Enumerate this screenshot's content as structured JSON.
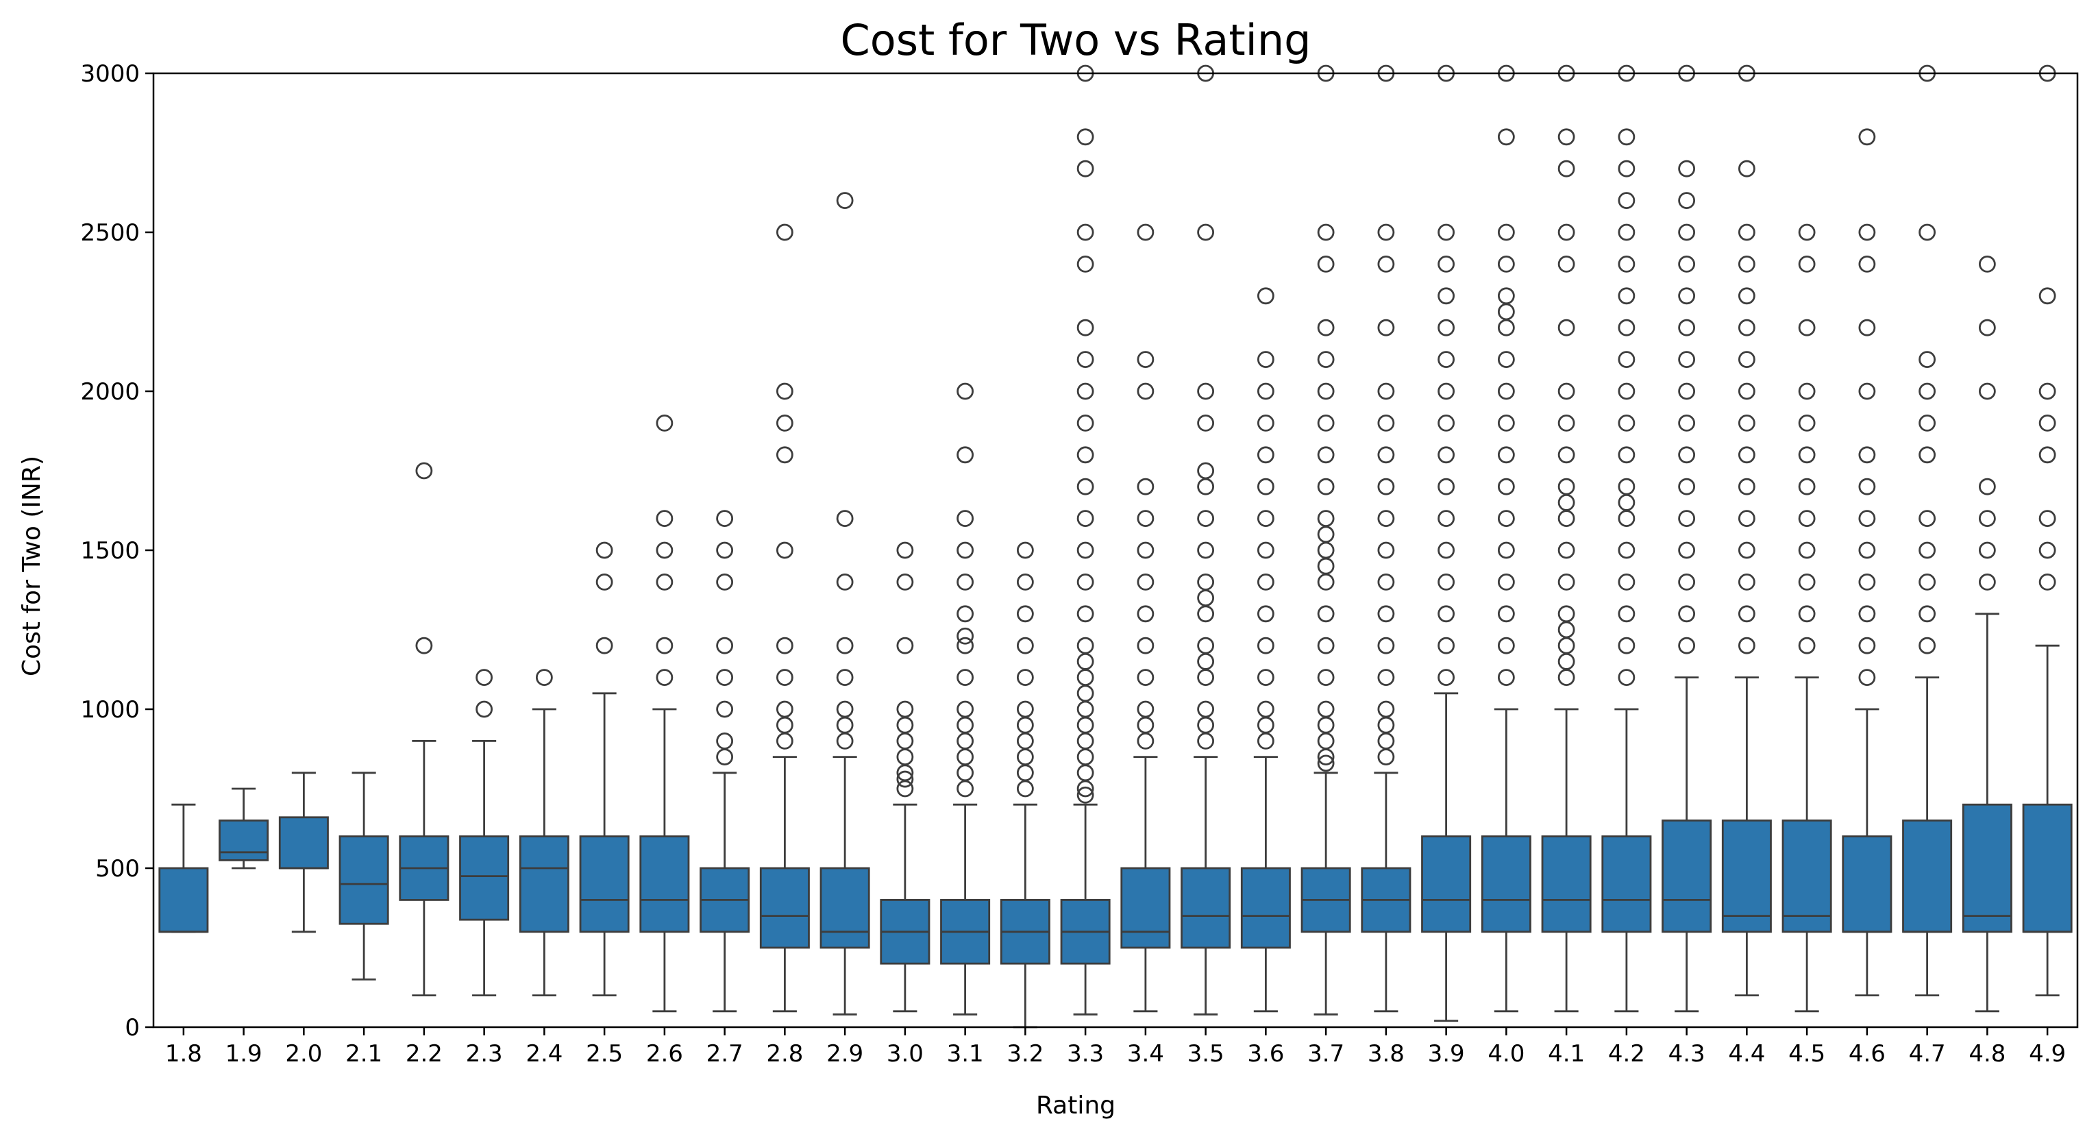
{
  "chart_data": {
    "type": "box",
    "title": "Cost for Two vs Rating",
    "xlabel": "Rating",
    "ylabel": "Cost for Two (INR)",
    "ylim": [
      0,
      3000
    ],
    "yticks": [
      0,
      500,
      1000,
      1500,
      2000,
      2500,
      3000
    ],
    "grid": false,
    "legend": "none",
    "colors": {
      "box": "#2c76ad",
      "line": "#3d3d3d",
      "outlier": "#3d3d3d"
    },
    "boxes": [
      {
        "x": "1.8",
        "whislo": 300,
        "q1": 300,
        "med": 300,
        "q3": 500,
        "whishi": 700,
        "fliers": []
      },
      {
        "x": "1.9",
        "whislo": 500,
        "q1": 525,
        "med": 550,
        "q3": 650,
        "whishi": 750,
        "fliers": []
      },
      {
        "x": "2.0",
        "whislo": 300,
        "q1": 500,
        "med": 500,
        "q3": 660,
        "whishi": 800,
        "fliers": []
      },
      {
        "x": "2.1",
        "whislo": 150,
        "q1": 325,
        "med": 450,
        "q3": 600,
        "whishi": 800,
        "fliers": []
      },
      {
        "x": "2.2",
        "whislo": 100,
        "q1": 400,
        "med": 500,
        "q3": 600,
        "whishi": 900,
        "fliers": [
          1200,
          1750
        ]
      },
      {
        "x": "2.3",
        "whislo": 100,
        "q1": 338,
        "med": 475,
        "q3": 600,
        "whishi": 900,
        "fliers": [
          1000,
          1100
        ]
      },
      {
        "x": "2.4",
        "whislo": 100,
        "q1": 300,
        "med": 500,
        "q3": 600,
        "whishi": 1000,
        "fliers": [
          1100
        ]
      },
      {
        "x": "2.5",
        "whislo": 100,
        "q1": 300,
        "med": 400,
        "q3": 600,
        "whishi": 1050,
        "fliers": [
          1200,
          1400,
          1500
        ]
      },
      {
        "x": "2.6",
        "whislo": 50,
        "q1": 300,
        "med": 400,
        "q3": 600,
        "whishi": 1000,
        "fliers": [
          1100,
          1200,
          1400,
          1500,
          1600,
          1900
        ]
      },
      {
        "x": "2.7",
        "whislo": 50,
        "q1": 300,
        "med": 400,
        "q3": 500,
        "whishi": 800,
        "fliers": [
          850,
          900,
          1000,
          1100,
          1200,
          1400,
          1500,
          1600
        ]
      },
      {
        "x": "2.8",
        "whislo": 50,
        "q1": 250,
        "med": 350,
        "q3": 500,
        "whishi": 850,
        "fliers": [
          900,
          950,
          1000,
          1100,
          1200,
          1500,
          1800,
          1900,
          2000,
          2500
        ]
      },
      {
        "x": "2.9",
        "whislo": 40,
        "q1": 250,
        "med": 300,
        "q3": 500,
        "whishi": 850,
        "fliers": [
          900,
          950,
          1000,
          1100,
          1200,
          1400,
          1600,
          2600
        ]
      },
      {
        "x": "3.0",
        "whislo": 50,
        "q1": 200,
        "med": 300,
        "q3": 400,
        "whishi": 700,
        "fliers": [
          750,
          780,
          800,
          850,
          900,
          950,
          1000,
          1200,
          1400,
          1500
        ]
      },
      {
        "x": "3.1",
        "whislo": 40,
        "q1": 200,
        "med": 300,
        "q3": 400,
        "whishi": 700,
        "fliers": [
          750,
          800,
          850,
          900,
          950,
          1000,
          1100,
          1200,
          1230,
          1300,
          1400,
          1500,
          1600,
          1800,
          2000
        ]
      },
      {
        "x": "3.2",
        "whislo": 0,
        "q1": 200,
        "med": 300,
        "q3": 400,
        "whishi": 700,
        "fliers": [
          750,
          800,
          850,
          900,
          950,
          1000,
          1100,
          1200,
          1300,
          1400,
          1500
        ]
      },
      {
        "x": "3.3",
        "whislo": 40,
        "q1": 200,
        "med": 300,
        "q3": 400,
        "whishi": 700,
        "fliers": [
          730,
          750,
          800,
          850,
          900,
          950,
          1000,
          1050,
          1100,
          1150,
          1200,
          1300,
          1400,
          1500,
          1600,
          1700,
          1800,
          1900,
          2000,
          2100,
          2200,
          2400,
          2500,
          2700,
          2800,
          3000
        ]
      },
      {
        "x": "3.4",
        "whislo": 50,
        "q1": 250,
        "med": 300,
        "q3": 500,
        "whishi": 850,
        "fliers": [
          900,
          950,
          1000,
          1100,
          1200,
          1300,
          1400,
          1500,
          1600,
          1700,
          2000,
          2100,
          2500
        ]
      },
      {
        "x": "3.5",
        "whislo": 40,
        "q1": 250,
        "med": 350,
        "q3": 500,
        "whishi": 850,
        "fliers": [
          900,
          950,
          1000,
          1100,
          1150,
          1200,
          1300,
          1350,
          1400,
          1500,
          1600,
          1700,
          1750,
          1900,
          2000,
          2500,
          3000
        ]
      },
      {
        "x": "3.6",
        "whislo": 50,
        "q1": 250,
        "med": 350,
        "q3": 500,
        "whishi": 850,
        "fliers": [
          900,
          950,
          1000,
          1100,
          1200,
          1300,
          1400,
          1500,
          1600,
          1700,
          1800,
          1900,
          2000,
          2100,
          2300
        ]
      },
      {
        "x": "3.7",
        "whislo": 40,
        "q1": 300,
        "med": 400,
        "q3": 500,
        "whishi": 800,
        "fliers": [
          830,
          850,
          900,
          950,
          1000,
          1100,
          1200,
          1300,
          1400,
          1450,
          1500,
          1550,
          1600,
          1700,
          1800,
          1900,
          2000,
          2100,
          2200,
          2400,
          2500,
          3000
        ]
      },
      {
        "x": "3.8",
        "whislo": 50,
        "q1": 300,
        "med": 400,
        "q3": 500,
        "whishi": 800,
        "fliers": [
          850,
          900,
          950,
          1000,
          1100,
          1200,
          1300,
          1400,
          1500,
          1600,
          1700,
          1800,
          1900,
          2000,
          2200,
          2400,
          2500,
          3000
        ]
      },
      {
        "x": "3.9",
        "whislo": 20,
        "q1": 300,
        "med": 400,
        "q3": 600,
        "whishi": 1050,
        "fliers": [
          1100,
          1200,
          1300,
          1400,
          1500,
          1600,
          1700,
          1800,
          1900,
          2000,
          2100,
          2200,
          2300,
          2400,
          2500,
          3000
        ]
      },
      {
        "x": "4.0",
        "whislo": 50,
        "q1": 300,
        "med": 400,
        "q3": 600,
        "whishi": 1000,
        "fliers": [
          1100,
          1200,
          1300,
          1400,
          1500,
          1600,
          1700,
          1800,
          1900,
          2000,
          2100,
          2200,
          2250,
          2300,
          2400,
          2500,
          2800,
          3000
        ]
      },
      {
        "x": "4.1",
        "whislo": 50,
        "q1": 300,
        "med": 400,
        "q3": 600,
        "whishi": 1000,
        "fliers": [
          1100,
          1150,
          1200,
          1250,
          1300,
          1400,
          1500,
          1600,
          1650,
          1700,
          1800,
          1900,
          2000,
          2200,
          2400,
          2500,
          2700,
          2800,
          3000
        ]
      },
      {
        "x": "4.2",
        "whislo": 50,
        "q1": 300,
        "med": 400,
        "q3": 600,
        "whishi": 1000,
        "fliers": [
          1100,
          1200,
          1300,
          1400,
          1500,
          1600,
          1650,
          1700,
          1800,
          1900,
          2000,
          2100,
          2200,
          2300,
          2400,
          2500,
          2600,
          2700,
          2800,
          3000
        ]
      },
      {
        "x": "4.3",
        "whislo": 50,
        "q1": 300,
        "med": 400,
        "q3": 650,
        "whishi": 1100,
        "fliers": [
          1200,
          1300,
          1400,
          1500,
          1600,
          1700,
          1800,
          1900,
          2000,
          2100,
          2200,
          2300,
          2400,
          2500,
          2600,
          2700,
          3000
        ]
      },
      {
        "x": "4.4",
        "whislo": 100,
        "q1": 300,
        "med": 350,
        "q3": 650,
        "whishi": 1100,
        "fliers": [
          1200,
          1300,
          1400,
          1500,
          1600,
          1700,
          1800,
          1900,
          2000,
          2100,
          2200,
          2300,
          2400,
          2500,
          2700,
          3000
        ]
      },
      {
        "x": "4.5",
        "whislo": 50,
        "q1": 300,
        "med": 350,
        "q3": 650,
        "whishi": 1100,
        "fliers": [
          1200,
          1300,
          1400,
          1500,
          1600,
          1700,
          1800,
          1900,
          2000,
          2200,
          2400,
          2500
        ]
      },
      {
        "x": "4.6",
        "whislo": 100,
        "q1": 300,
        "med": 300,
        "q3": 600,
        "whishi": 1000,
        "fliers": [
          1100,
          1200,
          1300,
          1400,
          1500,
          1600,
          1700,
          1800,
          2000,
          2200,
          2400,
          2500,
          2800
        ]
      },
      {
        "x": "4.7",
        "whislo": 100,
        "q1": 300,
        "med": 300,
        "q3": 650,
        "whishi": 1100,
        "fliers": [
          1200,
          1300,
          1400,
          1500,
          1600,
          1800,
          1900,
          2000,
          2100,
          2500,
          3000
        ]
      },
      {
        "x": "4.8",
        "whislo": 50,
        "q1": 300,
        "med": 350,
        "q3": 700,
        "whishi": 1300,
        "fliers": [
          1400,
          1500,
          1600,
          1700,
          2000,
          2200,
          2400
        ]
      },
      {
        "x": "4.9",
        "whislo": 100,
        "q1": 300,
        "med": 300,
        "q3": 700,
        "whishi": 1200,
        "fliers": [
          1400,
          1500,
          1600,
          1800,
          1900,
          2000,
          2300,
          3000
        ]
      }
    ]
  }
}
